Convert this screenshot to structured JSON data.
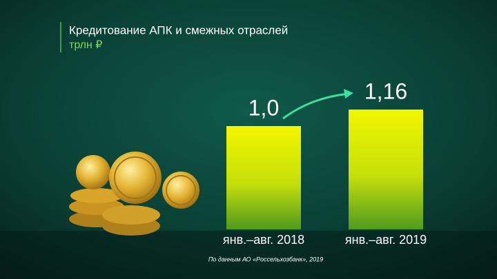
{
  "chart_data": {
    "type": "bar",
    "title": "Кредитование АПК и смежных отраслей",
    "subtitle": "трлн ₽",
    "categories": [
      "янв.–авг. 2018",
      "янв.–авг. 2019"
    ],
    "values": [
      1.0,
      1.16
    ],
    "value_labels": [
      "1,0",
      "1,16"
    ],
    "source": "По данным АО «Россельхозбанк», 2019"
  }
}
